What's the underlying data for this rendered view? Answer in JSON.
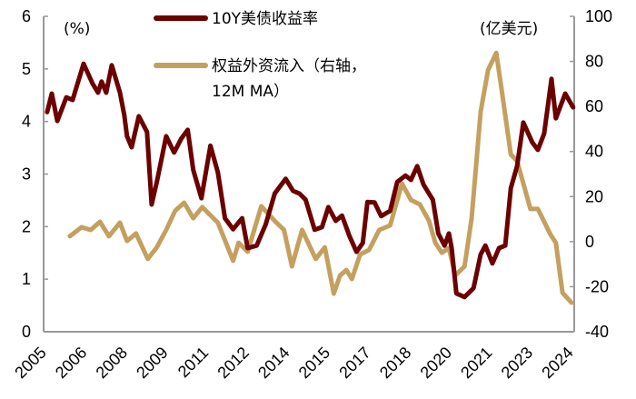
{
  "chart_data": {
    "type": "line",
    "left_unit": "(%)",
    "right_unit": "(亿美元)",
    "y_left": {
      "min": 0,
      "max": 6,
      "ticks": [
        0,
        1,
        2,
        3,
        4,
        5,
        6
      ]
    },
    "y_right": {
      "min": -40,
      "max": 100,
      "ticks": [
        -40,
        -20,
        0,
        20,
        40,
        60,
        80,
        100
      ]
    },
    "x_range": [
      2005.0,
      2024.4
    ],
    "x_tick_labels": [
      "2005",
      "2006",
      "2008",
      "2009",
      "2011",
      "2012",
      "2014",
      "2015",
      "2017",
      "2018",
      "2020",
      "2021",
      "2023",
      "2024"
    ],
    "legend_placement": "top-center",
    "grid": false,
    "series": [
      {
        "name": "10Y美债收益率",
        "axis": "left",
        "color": "#6b0000",
        "points": [
          [
            2005.13,
            4.18
          ],
          [
            2005.3,
            4.53
          ],
          [
            2005.5,
            4.01
          ],
          [
            2005.83,
            4.46
          ],
          [
            2006.06,
            4.41
          ],
          [
            2006.46,
            5.1
          ],
          [
            2006.79,
            4.72
          ],
          [
            2006.99,
            4.55
          ],
          [
            2007.12,
            4.76
          ],
          [
            2007.29,
            4.55
          ],
          [
            2007.49,
            5.07
          ],
          [
            2007.79,
            4.55
          ],
          [
            2007.95,
            4.12
          ],
          [
            2008.05,
            3.72
          ],
          [
            2008.22,
            3.51
          ],
          [
            2008.48,
            4.1
          ],
          [
            2008.78,
            3.8
          ],
          [
            2008.95,
            2.42
          ],
          [
            2009.14,
            2.85
          ],
          [
            2009.48,
            3.72
          ],
          [
            2009.77,
            3.41
          ],
          [
            2010.04,
            3.68
          ],
          [
            2010.27,
            3.84
          ],
          [
            2010.47,
            3.08
          ],
          [
            2010.77,
            2.54
          ],
          [
            2011.1,
            3.54
          ],
          [
            2011.37,
            3.03
          ],
          [
            2011.63,
            2.16
          ],
          [
            2011.93,
            1.95
          ],
          [
            2012.26,
            2.16
          ],
          [
            2012.46,
            1.59
          ],
          [
            2012.79,
            1.64
          ],
          [
            2013.12,
            2.04
          ],
          [
            2013.45,
            2.63
          ],
          [
            2013.85,
            2.91
          ],
          [
            2014.12,
            2.68
          ],
          [
            2014.35,
            2.63
          ],
          [
            2014.58,
            2.51
          ],
          [
            2014.91,
            1.94
          ],
          [
            2015.18,
            1.99
          ],
          [
            2015.41,
            2.37
          ],
          [
            2015.68,
            2.11
          ],
          [
            2015.91,
            2.21
          ],
          [
            2016.18,
            1.82
          ],
          [
            2016.44,
            1.52
          ],
          [
            2016.67,
            1.69
          ],
          [
            2016.84,
            2.47
          ],
          [
            2017.1,
            2.46
          ],
          [
            2017.34,
            2.2
          ],
          [
            2017.67,
            2.3
          ],
          [
            2017.93,
            2.85
          ],
          [
            2018.23,
            2.97
          ],
          [
            2018.43,
            2.89
          ],
          [
            2018.66,
            3.15
          ],
          [
            2018.89,
            2.8
          ],
          [
            2019.23,
            2.51
          ],
          [
            2019.43,
            1.87
          ],
          [
            2019.66,
            1.64
          ],
          [
            2019.82,
            1.87
          ],
          [
            2019.92,
            1.59
          ],
          [
            2020.09,
            0.73
          ],
          [
            2020.39,
            0.66
          ],
          [
            2020.72,
            0.83
          ],
          [
            2020.98,
            1.47
          ],
          [
            2021.15,
            1.64
          ],
          [
            2021.41,
            1.3
          ],
          [
            2021.65,
            1.59
          ],
          [
            2021.88,
            1.64
          ],
          [
            2022.08,
            2.73
          ],
          [
            2022.31,
            3.15
          ],
          [
            2022.54,
            3.98
          ],
          [
            2022.87,
            3.6
          ],
          [
            2023.07,
            3.46
          ],
          [
            2023.3,
            3.77
          ],
          [
            2023.57,
            4.81
          ],
          [
            2023.73,
            4.06
          ],
          [
            2024.07,
            4.53
          ],
          [
            2024.36,
            4.27
          ]
        ]
      },
      {
        "name": "权益外资流入（右轴，12M MA）",
        "legend_lines": [
          "权益外资流入（右轴，",
          "12M MA）"
        ],
        "axis": "right",
        "color": "#c4a060",
        "points": [
          [
            2005.96,
            2.4
          ],
          [
            2006.39,
            6.4
          ],
          [
            2006.72,
            5.2
          ],
          [
            2007.06,
            8.8
          ],
          [
            2007.39,
            2.4
          ],
          [
            2007.79,
            8.4
          ],
          [
            2008.05,
            0.3
          ],
          [
            2008.38,
            3.6
          ],
          [
            2008.81,
            -7.7
          ],
          [
            2009.14,
            -2.5
          ],
          [
            2009.48,
            5.2
          ],
          [
            2009.81,
            13.7
          ],
          [
            2010.14,
            17.3
          ],
          [
            2010.47,
            10.4
          ],
          [
            2010.8,
            15.3
          ],
          [
            2011.37,
            8.4
          ],
          [
            2011.93,
            -8.5
          ],
          [
            2012.13,
            -0.5
          ],
          [
            2012.46,
            -4.5
          ],
          [
            2012.96,
            15.7
          ],
          [
            2013.45,
            9.2
          ],
          [
            2013.79,
            5.2
          ],
          [
            2014.08,
            -11.0
          ],
          [
            2014.45,
            5.2
          ],
          [
            2014.95,
            -7.7
          ],
          [
            2015.28,
            -2.5
          ],
          [
            2015.61,
            -23.1
          ],
          [
            2015.84,
            -15.0
          ],
          [
            2016.07,
            -12.6
          ],
          [
            2016.27,
            -16.6
          ],
          [
            2016.57,
            -5.7
          ],
          [
            2016.9,
            -3.7
          ],
          [
            2017.27,
            5.2
          ],
          [
            2017.67,
            7.2
          ],
          [
            2018.1,
            25.8
          ],
          [
            2018.43,
            18.5
          ],
          [
            2018.76,
            16.5
          ],
          [
            2019.09,
            9.2
          ],
          [
            2019.32,
            -0.5
          ],
          [
            2019.56,
            -4.9
          ],
          [
            2019.82,
            -2.9
          ],
          [
            2020.05,
            -15.0
          ],
          [
            2020.39,
            -11.0
          ],
          [
            2020.65,
            10.4
          ],
          [
            2020.98,
            57.6
          ],
          [
            2021.25,
            76.2
          ],
          [
            2021.55,
            83.8
          ],
          [
            2021.74,
            68.1
          ],
          [
            2022.08,
            38.7
          ],
          [
            2022.31,
            35.8
          ],
          [
            2022.8,
            14.5
          ],
          [
            2023.07,
            14.5
          ],
          [
            2023.53,
            3.2
          ],
          [
            2023.73,
            -0.5
          ],
          [
            2023.97,
            -22.7
          ],
          [
            2024.3,
            -27.1
          ]
        ]
      }
    ]
  }
}
